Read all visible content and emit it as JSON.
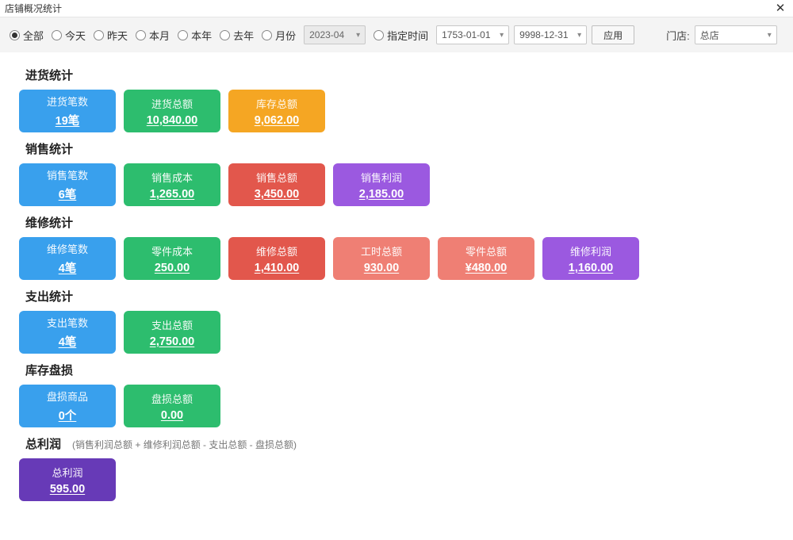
{
  "window": {
    "title": "店铺概况统计"
  },
  "toolbar": {
    "radios": {
      "all": "全部",
      "today": "今天",
      "yesterday": "昨天",
      "thisMonth": "本月",
      "thisYear": "本年",
      "lastYear": "去年",
      "month": "月份",
      "custom": "指定时间"
    },
    "selected": "all",
    "monthValue": "2023-04",
    "dateFrom": "1753-01-01",
    "dateTo": "9998-12-31",
    "applyLabel": "应用",
    "storeLabel": "门店:",
    "storeValue": "总店"
  },
  "colors": {
    "blue": "#39a0ed",
    "green": "#2dbd6e",
    "orange": "#f5a623",
    "red": "#e2574c",
    "coral": "#ef7f74",
    "purple": "#9b59e0",
    "deepPurple": "#673ab7"
  },
  "sections": [
    {
      "title": "进货统计",
      "cards": [
        {
          "title": "进货笔数",
          "value": "19笔",
          "color": "blue"
        },
        {
          "title": "进货总额",
          "value": "10,840.00",
          "color": "green"
        },
        {
          "title": "库存总额",
          "value": "9,062.00",
          "color": "orange"
        }
      ]
    },
    {
      "title": "销售统计",
      "cards": [
        {
          "title": "销售笔数",
          "value": "6笔",
          "color": "blue"
        },
        {
          "title": "销售成本",
          "value": "1,265.00",
          "color": "green"
        },
        {
          "title": "销售总额",
          "value": "3,450.00",
          "color": "red"
        },
        {
          "title": "销售利润",
          "value": "2,185.00",
          "color": "purple"
        }
      ]
    },
    {
      "title": "维修统计",
      "cards": [
        {
          "title": "维修笔数",
          "value": "4笔",
          "color": "blue"
        },
        {
          "title": "零件成本",
          "value": "250.00",
          "color": "green"
        },
        {
          "title": "维修总额",
          "value": "1,410.00",
          "color": "red"
        },
        {
          "title": "工时总额",
          "value": "930.00",
          "color": "coral"
        },
        {
          "title": "零件总额",
          "value": "¥480.00",
          "color": "coral"
        },
        {
          "title": "维修利润",
          "value": "1,160.00",
          "color": "purple"
        }
      ]
    },
    {
      "title": "支出统计",
      "cards": [
        {
          "title": "支出笔数",
          "value": "4笔",
          "color": "blue"
        },
        {
          "title": "支出总额",
          "value": "2,750.00",
          "color": "green"
        }
      ]
    },
    {
      "title": "库存盘损",
      "cards": [
        {
          "title": "盘损商品",
          "value": "0个",
          "color": "blue"
        },
        {
          "title": "盘损总额",
          "value": "0.00",
          "color": "green"
        }
      ]
    },
    {
      "title": "总利润",
      "subtitle": "(销售利润总额 + 维修利润总额 - 支出总额 - 盘损总额)",
      "cards": [
        {
          "title": "总利润",
          "value": "595.00",
          "color": "deepPurple"
        }
      ]
    }
  ]
}
